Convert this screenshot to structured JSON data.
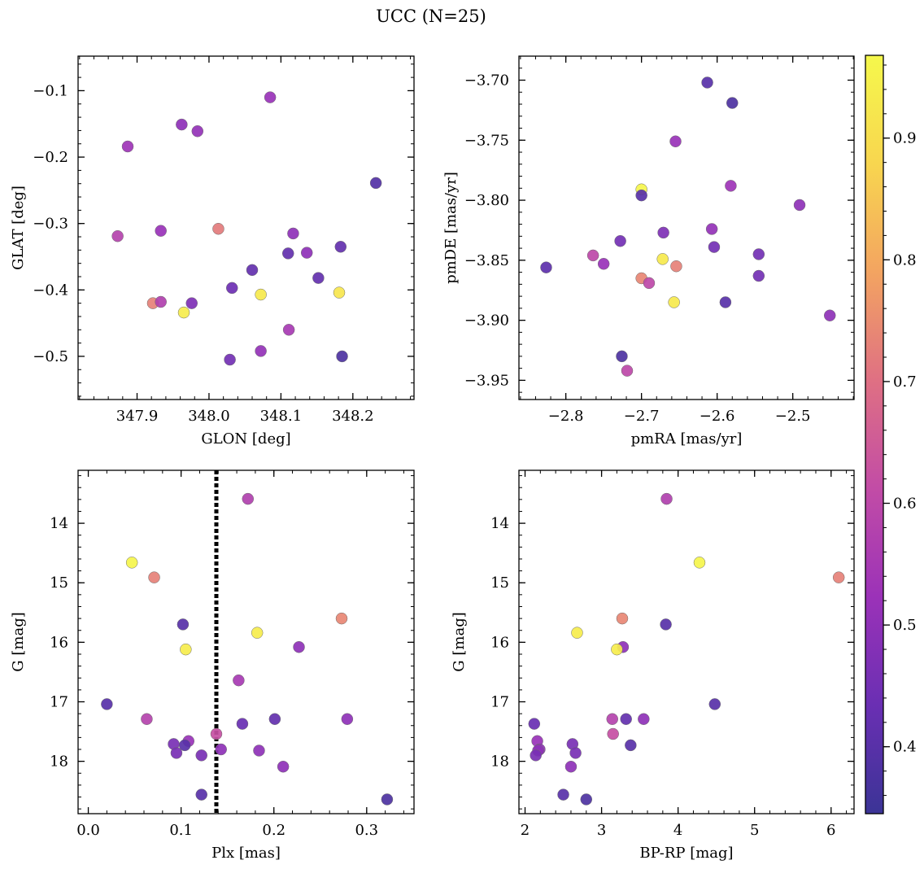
{
  "title": "UCC (N=25)",
  "colorbar": {
    "min": 0.345,
    "max": 0.968,
    "ticks": [
      0.4,
      0.5,
      0.6,
      0.7,
      0.8,
      0.9
    ],
    "tick_labels": [
      "0.4",
      "0.5",
      "0.6",
      "0.7",
      "0.8",
      "0.9"
    ],
    "colormap": "plasma-trimmed",
    "stops": [
      "#3b3496",
      "#6a2fb3",
      "#9b32b8",
      "#c24ca6",
      "#df7083",
      "#f3a461",
      "#f8d64f",
      "#f5f84c"
    ]
  },
  "chart_data": [
    {
      "type": "scatter",
      "id": "p1",
      "xlabel": "GLON [deg]",
      "ylabel": "GLAT [deg]",
      "xlim": [
        347.818,
        348.285
      ],
      "ylim": [
        -0.565,
        -0.048
      ],
      "xticks": [
        347.9,
        348.0,
        348.1,
        348.2
      ],
      "xtick_labels": [
        "347.9",
        "348.0",
        "348.1",
        "348.2"
      ],
      "yticks": [
        -0.5,
        -0.4,
        -0.3,
        -0.2,
        -0.1
      ],
      "ytick_labels": [
        "−0.5",
        "−0.4",
        "−0.3",
        "−0.2",
        "−0.1"
      ],
      "invert_y": false,
      "points": [
        {
          "x": 348.085,
          "y": -0.11,
          "c": 0.52
        },
        {
          "x": 347.962,
          "y": -0.151,
          "c": 0.5
        },
        {
          "x": 347.984,
          "y": -0.161,
          "c": 0.51
        },
        {
          "x": 347.887,
          "y": -0.184,
          "c": 0.53
        },
        {
          "x": 348.232,
          "y": -0.239,
          "c": 0.39
        },
        {
          "x": 348.013,
          "y": -0.308,
          "c": 0.72
        },
        {
          "x": 347.873,
          "y": -0.319,
          "c": 0.58
        },
        {
          "x": 347.933,
          "y": -0.311,
          "c": 0.52
        },
        {
          "x": 348.117,
          "y": -0.315,
          "c": 0.5
        },
        {
          "x": 348.183,
          "y": -0.335,
          "c": 0.42
        },
        {
          "x": 348.11,
          "y": -0.345,
          "c": 0.42
        },
        {
          "x": 348.136,
          "y": -0.344,
          "c": 0.5
        },
        {
          "x": 348.06,
          "y": -0.37,
          "c": 0.42
        },
        {
          "x": 348.152,
          "y": -0.382,
          "c": 0.42
        },
        {
          "x": 348.032,
          "y": -0.397,
          "c": 0.44
        },
        {
          "x": 348.072,
          "y": -0.407,
          "c": 0.93
        },
        {
          "x": 348.181,
          "y": -0.404,
          "c": 0.92
        },
        {
          "x": 347.922,
          "y": -0.42,
          "c": 0.73
        },
        {
          "x": 347.933,
          "y": -0.418,
          "c": 0.57
        },
        {
          "x": 347.976,
          "y": -0.42,
          "c": 0.47
        },
        {
          "x": 347.965,
          "y": -0.434,
          "c": 0.94
        },
        {
          "x": 348.111,
          "y": -0.46,
          "c": 0.55
        },
        {
          "x": 348.072,
          "y": -0.492,
          "c": 0.51
        },
        {
          "x": 348.029,
          "y": -0.505,
          "c": 0.45
        },
        {
          "x": 348.185,
          "y": -0.5,
          "c": 0.38
        }
      ]
    },
    {
      "type": "scatter",
      "id": "p2",
      "xlabel": "pmRA [mas/yr]",
      "ylabel": "pmDE [mas/yr]",
      "xlim": [
        -2.862,
        -2.419
      ],
      "ylim": [
        -3.966,
        -3.68
      ],
      "xticks": [
        -2.8,
        -2.7,
        -2.6,
        -2.5
      ],
      "xtick_labels": [
        "−2.8",
        "−2.7",
        "−2.6",
        "−2.5"
      ],
      "yticks": [
        -3.95,
        -3.9,
        -3.85,
        -3.8,
        -3.75,
        -3.7
      ],
      "ytick_labels": [
        "−3.95",
        "−3.90",
        "−3.85",
        "−3.80",
        "−3.75",
        "−3.70"
      ],
      "invert_y": false,
      "points": [
        {
          "x": -2.613,
          "y": -3.702,
          "c": 0.4
        },
        {
          "x": -2.58,
          "y": -3.719,
          "c": 0.38
        },
        {
          "x": -2.655,
          "y": -3.751,
          "c": 0.52
        },
        {
          "x": -2.582,
          "y": -3.788,
          "c": 0.53
        },
        {
          "x": -2.7,
          "y": -3.791,
          "c": 0.96
        },
        {
          "x": -2.7,
          "y": -3.796,
          "c": 0.4
        },
        {
          "x": -2.491,
          "y": -3.804,
          "c": 0.5
        },
        {
          "x": -2.607,
          "y": -3.824,
          "c": 0.51
        },
        {
          "x": -2.671,
          "y": -3.827,
          "c": 0.47
        },
        {
          "x": -2.728,
          "y": -3.834,
          "c": 0.45
        },
        {
          "x": -2.604,
          "y": -3.839,
          "c": 0.45
        },
        {
          "x": -2.545,
          "y": -3.845,
          "c": 0.45
        },
        {
          "x": -2.826,
          "y": -3.856,
          "c": 0.41
        },
        {
          "x": -2.764,
          "y": -3.846,
          "c": 0.6
        },
        {
          "x": -2.75,
          "y": -3.853,
          "c": 0.52
        },
        {
          "x": -2.672,
          "y": -3.849,
          "c": 0.93
        },
        {
          "x": -2.654,
          "y": -3.855,
          "c": 0.73
        },
        {
          "x": -2.545,
          "y": -3.863,
          "c": 0.45
        },
        {
          "x": -2.7,
          "y": -3.865,
          "c": 0.74
        },
        {
          "x": -2.69,
          "y": -3.869,
          "c": 0.6
        },
        {
          "x": -2.657,
          "y": -3.885,
          "c": 0.93
        },
        {
          "x": -2.589,
          "y": -3.885,
          "c": 0.4
        },
        {
          "x": -2.451,
          "y": -3.896,
          "c": 0.5
        },
        {
          "x": -2.726,
          "y": -3.93,
          "c": 0.38
        },
        {
          "x": -2.719,
          "y": -3.942,
          "c": 0.6
        }
      ]
    },
    {
      "type": "scatter",
      "id": "p3",
      "xlabel": "Plx [mas]",
      "ylabel": "G [mag]",
      "xlim": [
        -0.011,
        0.351
      ],
      "ylim": [
        13.11,
        18.88
      ],
      "xticks": [
        0.0,
        0.1,
        0.2,
        0.3
      ],
      "xtick_labels": [
        "0.0",
        "0.1",
        "0.2",
        "0.3"
      ],
      "yticks": [
        14,
        15,
        16,
        17,
        18
      ],
      "ytick_labels": [
        "14",
        "15",
        "16",
        "17",
        "18"
      ],
      "invert_y": true,
      "vline": 0.138,
      "points": [
        {
          "x": 0.172,
          "y": 13.59,
          "c": 0.57
        },
        {
          "x": 0.047,
          "y": 14.66,
          "c": 0.96
        },
        {
          "x": 0.071,
          "y": 14.91,
          "c": 0.73
        },
        {
          "x": 0.273,
          "y": 15.6,
          "c": 0.74
        },
        {
          "x": 0.102,
          "y": 15.7,
          "c": 0.4
        },
        {
          "x": 0.182,
          "y": 15.84,
          "c": 0.94
        },
        {
          "x": 0.227,
          "y": 16.08,
          "c": 0.5
        },
        {
          "x": 0.105,
          "y": 16.12,
          "c": 0.94
        },
        {
          "x": 0.162,
          "y": 16.64,
          "c": 0.55
        },
        {
          "x": 0.02,
          "y": 17.04,
          "c": 0.4
        },
        {
          "x": 0.063,
          "y": 17.29,
          "c": 0.58
        },
        {
          "x": 0.201,
          "y": 17.29,
          "c": 0.42
        },
        {
          "x": 0.279,
          "y": 17.29,
          "c": 0.5
        },
        {
          "x": 0.166,
          "y": 17.37,
          "c": 0.43
        },
        {
          "x": 0.138,
          "y": 17.54,
          "c": 0.62
        },
        {
          "x": 0.108,
          "y": 17.66,
          "c": 0.52
        },
        {
          "x": 0.092,
          "y": 17.71,
          "c": 0.46
        },
        {
          "x": 0.104,
          "y": 17.73,
          "c": 0.4
        },
        {
          "x": 0.143,
          "y": 17.8,
          "c": 0.5
        },
        {
          "x": 0.184,
          "y": 17.82,
          "c": 0.5
        },
        {
          "x": 0.095,
          "y": 17.86,
          "c": 0.46
        },
        {
          "x": 0.122,
          "y": 17.9,
          "c": 0.46
        },
        {
          "x": 0.21,
          "y": 18.09,
          "c": 0.5
        },
        {
          "x": 0.122,
          "y": 18.56,
          "c": 0.4
        },
        {
          "x": 0.322,
          "y": 18.64,
          "c": 0.38
        }
      ]
    },
    {
      "type": "scatter",
      "id": "p4",
      "xlabel": "BP-RP [mag]",
      "ylabel": "G [mag]",
      "xlim": [
        1.92,
        6.3
      ],
      "ylim": [
        13.11,
        18.88
      ],
      "xticks": [
        2,
        3,
        4,
        5,
        6
      ],
      "xtick_labels": [
        "2",
        "3",
        "4",
        "5",
        "6"
      ],
      "yticks": [
        14,
        15,
        16,
        17,
        18
      ],
      "ytick_labels": [
        "14",
        "15",
        "16",
        "17",
        "18"
      ],
      "invert_y": true,
      "points": [
        {
          "x": 3.85,
          "y": 13.59,
          "c": 0.57
        },
        {
          "x": 4.28,
          "y": 14.66,
          "c": 0.96
        },
        {
          "x": 6.1,
          "y": 14.91,
          "c": 0.73
        },
        {
          "x": 3.27,
          "y": 15.6,
          "c": 0.74
        },
        {
          "x": 3.84,
          "y": 15.7,
          "c": 0.4
        },
        {
          "x": 2.68,
          "y": 15.84,
          "c": 0.94
        },
        {
          "x": 3.28,
          "y": 16.08,
          "c": 0.5
        },
        {
          "x": 3.2,
          "y": 16.12,
          "c": 0.94
        },
        {
          "x": 4.48,
          "y": 17.04,
          "c": 0.4
        },
        {
          "x": 3.14,
          "y": 17.29,
          "c": 0.58
        },
        {
          "x": 3.32,
          "y": 17.29,
          "c": 0.42
        },
        {
          "x": 3.55,
          "y": 17.29,
          "c": 0.5
        },
        {
          "x": 2.12,
          "y": 17.37,
          "c": 0.43
        },
        {
          "x": 3.15,
          "y": 17.54,
          "c": 0.62
        },
        {
          "x": 2.16,
          "y": 17.66,
          "c": 0.52
        },
        {
          "x": 2.62,
          "y": 17.71,
          "c": 0.46
        },
        {
          "x": 3.38,
          "y": 17.73,
          "c": 0.4
        },
        {
          "x": 2.19,
          "y": 17.8,
          "c": 0.5
        },
        {
          "x": 2.17,
          "y": 17.82,
          "c": 0.5
        },
        {
          "x": 2.66,
          "y": 17.86,
          "c": 0.46
        },
        {
          "x": 2.14,
          "y": 17.9,
          "c": 0.46
        },
        {
          "x": 2.6,
          "y": 18.09,
          "c": 0.5
        },
        {
          "x": 2.5,
          "y": 18.56,
          "c": 0.4
        },
        {
          "x": 2.8,
          "y": 18.64,
          "c": 0.38
        }
      ]
    }
  ]
}
